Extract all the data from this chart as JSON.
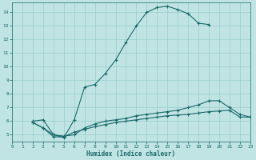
{
  "xlabel": "Humidex (Indice chaleur)",
  "bg_color": "#c0e4e4",
  "grid_color": "#98cccc",
  "line_color": "#1a6868",
  "xlim": [
    0,
    23
  ],
  "ylim": [
    4.5,
    14.7
  ],
  "yticks": [
    5,
    6,
    7,
    8,
    9,
    10,
    11,
    12,
    13,
    14
  ],
  "xticks": [
    0,
    1,
    2,
    3,
    4,
    5,
    6,
    7,
    8,
    9,
    10,
    11,
    12,
    13,
    14,
    15,
    16,
    17,
    18,
    19,
    20,
    21,
    22,
    23
  ],
  "line1_x": [
    2,
    3,
    4,
    5,
    6,
    7,
    8,
    9,
    10,
    11,
    12,
    13,
    14,
    15,
    16,
    17,
    18,
    19
  ],
  "line1_y": [
    6.0,
    6.1,
    5.0,
    4.8,
    6.1,
    8.5,
    8.7,
    9.5,
    10.5,
    11.8,
    13.0,
    14.0,
    14.35,
    14.45,
    14.2,
    13.9,
    13.2,
    13.1
  ],
  "line2_x": [
    2,
    3,
    4,
    5,
    6,
    7,
    8,
    9,
    10,
    11,
    12,
    13,
    14,
    15,
    16,
    17,
    18,
    19,
    20,
    21,
    22,
    23
  ],
  "line2_y": [
    5.9,
    5.5,
    5.0,
    4.9,
    5.0,
    5.5,
    5.8,
    6.0,
    6.1,
    6.2,
    6.4,
    6.5,
    6.6,
    6.7,
    6.8,
    7.0,
    7.2,
    7.5,
    7.5,
    7.0,
    6.5,
    6.3
  ],
  "line3_x": [
    2,
    3,
    4,
    5,
    6,
    7,
    8,
    9,
    10,
    11,
    12,
    13,
    14,
    15,
    16,
    17,
    18,
    19,
    20,
    21,
    22,
    23
  ],
  "line3_y": [
    5.9,
    5.5,
    4.85,
    4.85,
    5.2,
    5.4,
    5.6,
    5.75,
    5.9,
    6.0,
    6.1,
    6.2,
    6.3,
    6.4,
    6.45,
    6.5,
    6.6,
    6.7,
    6.75,
    6.8,
    6.3,
    6.3
  ]
}
